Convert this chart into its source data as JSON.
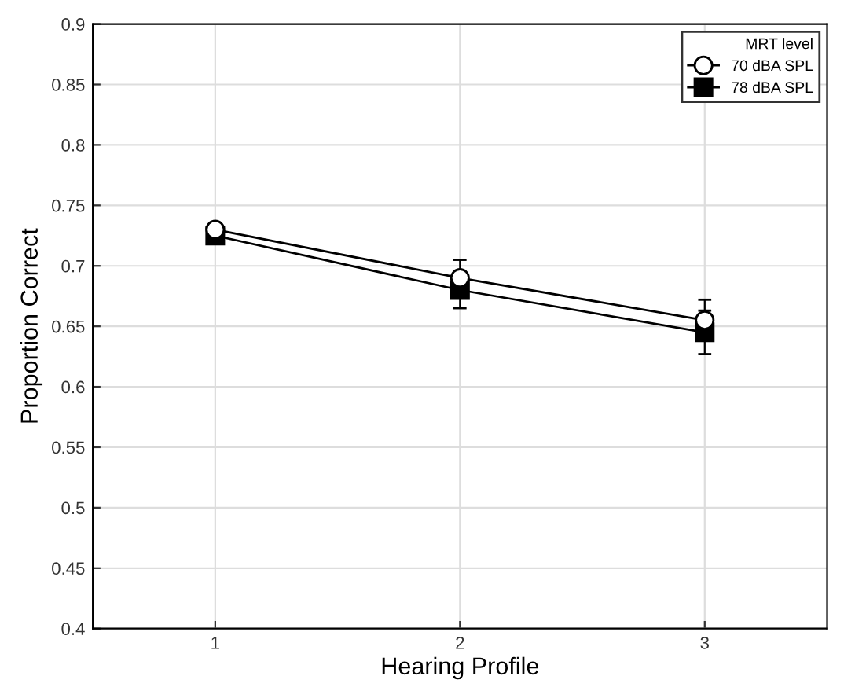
{
  "chart_data": {
    "type": "line",
    "xlabel": "Hearing Profile",
    "ylabel": "Proportion Correct",
    "legend_title": "MRT level",
    "x": [
      1,
      2,
      3
    ],
    "series": [
      {
        "name": "70 dBA SPL",
        "color": "#000000",
        "marker": "circle",
        "values": [
          0.73,
          0.69,
          0.655
        ],
        "errors": [
          null,
          0.015,
          0.017
        ]
      },
      {
        "name": "78 dBA SPL",
        "color": "#000000",
        "marker": "square",
        "values": [
          0.725,
          0.68,
          0.645
        ],
        "errors": [
          null,
          0.015,
          0.018
        ]
      }
    ],
    "xlim": [
      0.5,
      3.5
    ],
    "xticks": [
      1,
      2,
      3
    ],
    "ylim": [
      0.4,
      0.9
    ],
    "yticks": [
      0.4,
      0.45,
      0.5,
      0.55,
      0.6,
      0.65,
      0.7,
      0.75,
      0.8,
      0.85,
      0.9
    ],
    "grid": true,
    "legend": "top right",
    "line_style": "solid"
  }
}
